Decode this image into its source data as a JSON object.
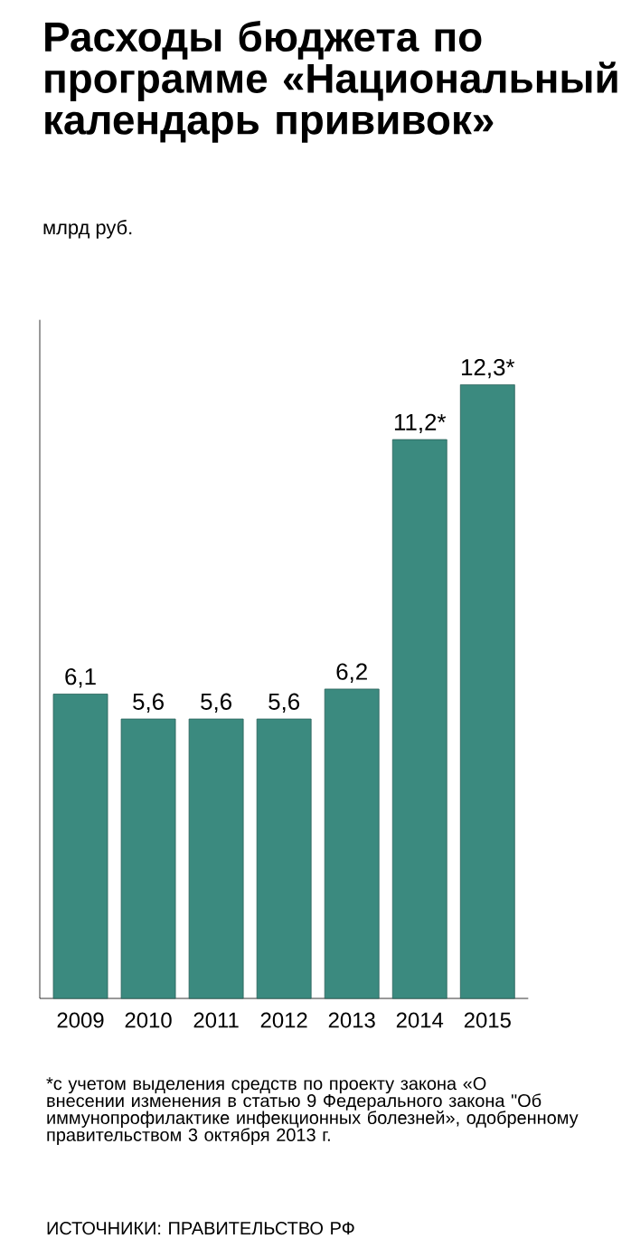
{
  "chart_data": {
    "type": "bar",
    "title": "Расходы бюджета по программе «Национальный календарь прививок»",
    "subtitle": "млрд руб.",
    "categories": [
      "2009",
      "2010",
      "2011",
      "2012",
      "2013",
      "2014",
      "2015"
    ],
    "values": [
      6.1,
      5.6,
      5.6,
      5.6,
      6.2,
      11.2,
      12.3
    ],
    "value_labels": [
      "6,1",
      "5,6",
      "5,6",
      "5,6",
      "6,2",
      "11,2*",
      "12,3*"
    ],
    "color": "#3b8a7f",
    "ylim": [
      0,
      13.6
    ],
    "tick_labels": "x",
    "annotations": [
      "*с учетом выделения средств по проекту закона «О внесении изменения в статью 9 Федерального закона \"Об иммунопрофилактике инфекционных болезней», одобренному правительством 3 октября 2013 г.",
      "ИСТОЧНИКИ: ПРАВИТЕЛЬСТВО РФ"
    ]
  }
}
